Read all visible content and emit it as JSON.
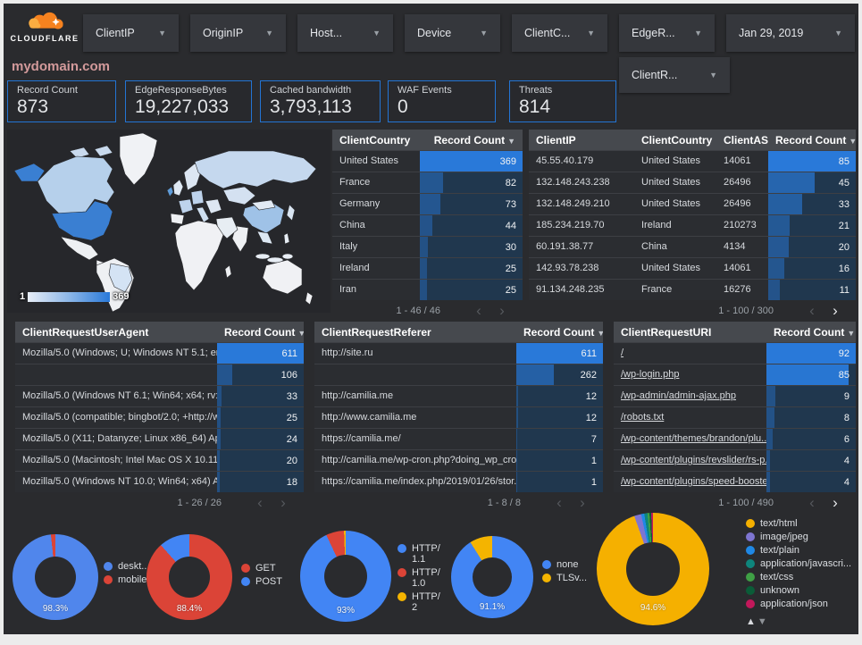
{
  "header": {
    "logo_text": "CLOUDFLARE",
    "filters": [
      "ClientIP",
      "OriginIP",
      "Host...",
      "Device",
      "ClientC...",
      "EdgeR..."
    ],
    "date_label": "Jan 29, 2019",
    "filters_row2": [
      "ClientR..."
    ],
    "caret": "▼"
  },
  "page_title": "mydomain.com",
  "scorecards": [
    {
      "label": "Record Count",
      "value": "873"
    },
    {
      "label": "EdgeResponseBytes",
      "value": "19,227,033"
    },
    {
      "label": "Cached bandwidth",
      "value": "3,793,113"
    },
    {
      "label": "WAF Events",
      "value": "0"
    },
    {
      "label": "Threats",
      "value": "814"
    }
  ],
  "map": {
    "legend_min": "1",
    "legend_max": "369"
  },
  "tables": {
    "country": {
      "headers": [
        "ClientCountry",
        "Record Count"
      ],
      "rows": [
        [
          "United States",
          369
        ],
        [
          "France",
          82
        ],
        [
          "Germany",
          73
        ],
        [
          "China",
          44
        ],
        [
          "Italy",
          30
        ],
        [
          "Ireland",
          25
        ],
        [
          "Iran",
          25
        ]
      ],
      "pagination": "1 - 46 / 46",
      "prev_enabled": false,
      "next_enabled": false
    },
    "client_ip": {
      "headers": [
        "ClientIP",
        "ClientCountry",
        "ClientASN",
        "Record Count"
      ],
      "rows": [
        [
          "45.55.40.179",
          "United States",
          "14061",
          85
        ],
        [
          "132.148.243.238",
          "United States",
          "26496",
          45
        ],
        [
          "132.148.249.210",
          "United States",
          "26496",
          33
        ],
        [
          "185.234.219.70",
          "Ireland",
          "210273",
          21
        ],
        [
          "60.191.38.77",
          "China",
          "4134",
          20
        ],
        [
          "142.93.78.238",
          "United States",
          "14061",
          16
        ],
        [
          "91.134.248.235",
          "France",
          "16276",
          11
        ]
      ],
      "pagination": "1 - 100 / 300",
      "prev_enabled": false,
      "next_enabled": true
    },
    "user_agent": {
      "headers": [
        "ClientRequestUserAgent",
        "Record Count"
      ],
      "rows": [
        [
          "Mozilla/5.0 (Windows; U; Windows NT 5.1; en-U...",
          611
        ],
        [
          "",
          106
        ],
        [
          "Mozilla/5.0 (Windows NT 6.1; Win64; x64; rv:64...",
          33
        ],
        [
          "Mozilla/5.0 (compatible; bingbot/2.0; +http://w...",
          25
        ],
        [
          "Mozilla/5.0 (X11; Datanyze; Linux x86_64) Appl...",
          24
        ],
        [
          "Mozilla/5.0 (Macintosh; Intel Mac OS X 10.11; r...",
          20
        ],
        [
          "Mozilla/5.0 (Windows NT 10.0; Win64; x64) App...",
          18
        ]
      ],
      "pagination": "1 - 26 / 26",
      "prev_enabled": false,
      "next_enabled": false
    },
    "referer": {
      "headers": [
        "ClientRequestReferer",
        "Record Count"
      ],
      "rows": [
        [
          "http://site.ru",
          611
        ],
        [
          "",
          262
        ],
        [
          "http://camilia.me",
          12
        ],
        [
          "http://www.camilia.me",
          12
        ],
        [
          "https://camilia.me/",
          7
        ],
        [
          "http://camilia.me/wp-cron.php?doing_wp_cron...",
          1
        ],
        [
          "https://camilia.me/index.php/2019/01/26/stor...",
          1
        ]
      ],
      "pagination": "1 - 8 / 8",
      "prev_enabled": false,
      "next_enabled": false
    },
    "uri": {
      "headers": [
        "ClientRequestURI",
        "Record Count"
      ],
      "rows": [
        [
          "/",
          92
        ],
        [
          "/wp-login.php",
          85
        ],
        [
          "/wp-admin/admin-ajax.php",
          9
        ],
        [
          "/robots.txt",
          8
        ],
        [
          "/wp-content/themes/brandon/plu...",
          6
        ],
        [
          "/wp-content/plugins/revslider/rs-p...",
          4
        ],
        [
          "/wp-content/plugins/speed-booste...",
          4
        ]
      ],
      "pagination": "1 - 100 / 490",
      "prev_enabled": false,
      "next_enabled": true
    }
  },
  "donuts": [
    {
      "id": "device",
      "center_label": "98.3%",
      "slices": [
        {
          "label": "deskt...",
          "pct": 98.3,
          "color": "#5086ec"
        },
        {
          "label": "mobile",
          "pct": 1.7,
          "color": "#db4437"
        }
      ]
    },
    {
      "id": "request-method",
      "center_label": "88.4%",
      "slices": [
        {
          "label": "GET",
          "pct": 88.4,
          "color": "#db4437"
        },
        {
          "label": "POST",
          "pct": 11.6,
          "color": "#4285f4"
        }
      ]
    },
    {
      "id": "http-protocol",
      "center_label": "93%",
      "slices": [
        {
          "label": "HTTP/1.1",
          "pct": 93,
          "color": "#4285f4"
        },
        {
          "label": "HTTP/1.0",
          "pct": 6.4,
          "color": "#db4437"
        },
        {
          "label": "HTTP/2",
          "pct": 0.6,
          "color": "#f4b400"
        }
      ]
    },
    {
      "id": "tls-version",
      "center_label": "91.1%",
      "slices": [
        {
          "label": "none",
          "pct": 91.1,
          "color": "#4285f4"
        },
        {
          "label": "TLSv...",
          "pct": 8.9,
          "color": "#f4b400"
        }
      ]
    },
    {
      "id": "content-type",
      "center_label": "94.6%",
      "has_legend_arrows": true,
      "slices": [
        {
          "label": "text/html",
          "pct": 94.6,
          "color": "#f5b000"
        },
        {
          "label": "image/jpeg",
          "pct": 2.0,
          "color": "#7e75d1"
        },
        {
          "label": "text/plain",
          "pct": 0.9,
          "color": "#1f88e5"
        },
        {
          "label": "application/javascri...",
          "pct": 0.9,
          "color": "#0e857c"
        },
        {
          "label": "text/css",
          "pct": 0.6,
          "color": "#3fa045"
        },
        {
          "label": "unknown",
          "pct": 0.5,
          "color": "#0b5c38"
        },
        {
          "label": "application/json",
          "pct": 0.5,
          "color": "#c2185b"
        }
      ]
    }
  ],
  "pagination_icons": {
    "prev": "‹",
    "next": "›",
    "legend_up": "▲",
    "legend_down": "▼"
  }
}
